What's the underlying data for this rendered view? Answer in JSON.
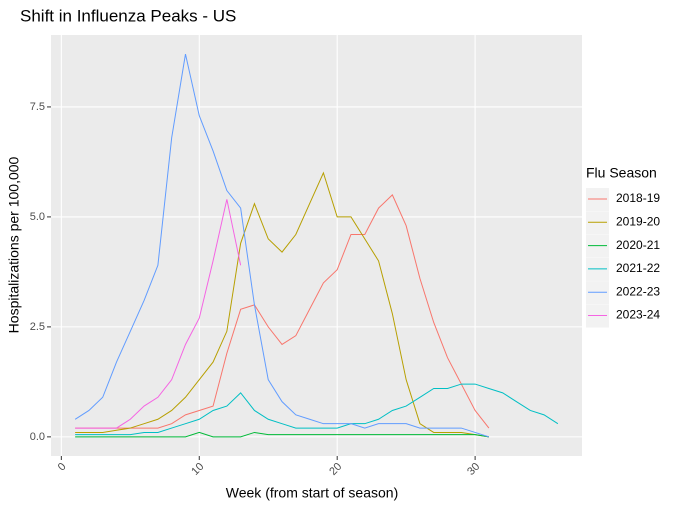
{
  "chart_data": {
    "type": "line",
    "title": "Shift in Influenza Peaks - US",
    "x_label": "Week (from start of season)",
    "y_label": "Hospitalizations per 100,000",
    "legend_title": "Flu Season",
    "x": [
      1,
      2,
      3,
      4,
      5,
      6,
      7,
      8,
      9,
      10,
      11,
      12,
      13,
      14,
      15,
      16,
      17,
      18,
      19,
      20,
      21,
      22,
      23,
      24,
      25,
      26,
      27,
      28,
      29,
      30,
      31,
      32,
      33,
      34,
      35,
      36
    ],
    "series": [
      {
        "name": "2018-19",
        "color": "#F8766D",
        "values": [
          0.2,
          0.2,
          0.2,
          0.2,
          0.2,
          0.2,
          0.2,
          0.3,
          0.5,
          0.6,
          0.7,
          1.9,
          2.9,
          3.0,
          2.5,
          2.1,
          2.3,
          2.9,
          3.5,
          3.8,
          4.6,
          4.6,
          5.2,
          5.5,
          4.8,
          3.6,
          2.6,
          1.8,
          1.2,
          0.6,
          0.2,
          null,
          null,
          null,
          null,
          null
        ]
      },
      {
        "name": "2019-20",
        "color": "#B79F00",
        "values": [
          0.1,
          0.1,
          0.1,
          0.15,
          0.2,
          0.3,
          0.4,
          0.6,
          0.9,
          1.3,
          1.7,
          2.4,
          4.4,
          5.3,
          4.5,
          4.2,
          4.6,
          5.3,
          6.0,
          5.0,
          5.0,
          4.5,
          4.0,
          2.8,
          1.3,
          0.3,
          0.1,
          0.1,
          0.1,
          0.05,
          0,
          null,
          null,
          null,
          null,
          null
        ]
      },
      {
        "name": "2020-21",
        "color": "#00BA38",
        "values": [
          0,
          0,
          0,
          0,
          0,
          0,
          0,
          0,
          0,
          0.1,
          0,
          0,
          0,
          0.1,
          0.05,
          0.05,
          0.05,
          0.05,
          0.05,
          0.05,
          0.05,
          0.05,
          0.05,
          0.05,
          0.05,
          0.05,
          0.05,
          0.05,
          0.05,
          0.05,
          0,
          null,
          null,
          null,
          null,
          null
        ]
      },
      {
        "name": "2021-22",
        "color": "#00BFC4",
        "values": [
          0.05,
          0.05,
          0.05,
          0.05,
          0.05,
          0.1,
          0.1,
          0.2,
          0.3,
          0.4,
          0.6,
          0.7,
          1.0,
          0.6,
          0.4,
          0.3,
          0.2,
          0.2,
          0.2,
          0.2,
          0.3,
          0.3,
          0.4,
          0.6,
          0.7,
          0.9,
          1.1,
          1.1,
          1.2,
          1.2,
          1.1,
          1.0,
          0.8,
          0.6,
          0.5,
          0.3
        ]
      },
      {
        "name": "2022-23",
        "color": "#619CFF",
        "values": [
          0.4,
          0.6,
          0.9,
          1.7,
          2.4,
          3.1,
          3.9,
          6.8,
          8.7,
          7.3,
          6.5,
          5.6,
          5.2,
          3.0,
          1.3,
          0.8,
          0.5,
          0.4,
          0.3,
          0.3,
          0.3,
          0.2,
          0.3,
          0.3,
          0.3,
          0.2,
          0.2,
          0.2,
          0.2,
          0.1,
          0,
          null,
          null,
          null,
          null,
          null
        ]
      },
      {
        "name": "2023-24",
        "color": "#F564E3",
        "values": [
          0.2,
          0.2,
          0.2,
          0.2,
          0.4,
          0.7,
          0.9,
          1.3,
          2.1,
          2.7,
          4.0,
          5.4,
          3.9,
          null,
          null,
          null,
          null,
          null,
          null,
          null,
          null,
          null,
          null,
          null,
          null,
          null,
          null,
          null,
          null,
          null,
          null,
          null,
          null,
          null,
          null,
          null
        ]
      }
    ],
    "xlim": [
      -0.75,
      37.75
    ],
    "xticks": [
      0,
      10,
      20,
      30
    ],
    "ylim": [
      -0.435,
      9.135
    ],
    "yticks": [
      {
        "value": 0,
        "label": "0.0"
      },
      2.5,
      {
        "value": 5,
        "label": "5.0"
      },
      7.5
    ],
    "grid": true,
    "legend_position": "right"
  }
}
